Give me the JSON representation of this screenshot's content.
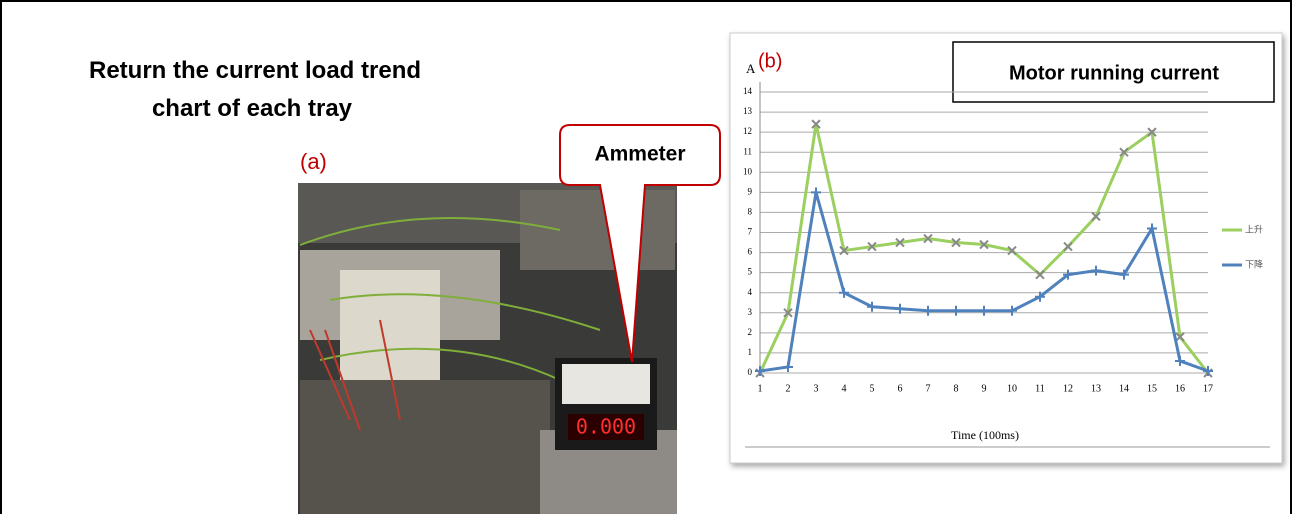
{
  "heading": "Return the current load trend chart of each tray",
  "panel_a": "(a)",
  "panel_b": "(b)",
  "callout": "Ammeter",
  "display": "0.000",
  "chart_data": {
    "type": "line",
    "title": "Motor running current",
    "y_label": "A",
    "x_label": "Time (100ms)",
    "categories": [
      "1",
      "2",
      "3",
      "4",
      "5",
      "6",
      "7",
      "8",
      "9",
      "10",
      "11",
      "12",
      "13",
      "14",
      "15",
      "16",
      "17"
    ],
    "series": [
      {
        "name": "上升",
        "color": "#9bcf5f",
        "values": [
          0,
          3,
          12.4,
          6.1,
          6.3,
          6.5,
          6.7,
          6.5,
          6.4,
          6.1,
          4.9,
          6.3,
          7.8,
          11,
          12,
          1.8,
          0
        ]
      },
      {
        "name": "下降",
        "color": "#4f81bd",
        "values": [
          0.1,
          0.3,
          9,
          4,
          3.3,
          3.2,
          3.1,
          3.1,
          3.1,
          3.1,
          3.8,
          4.9,
          5.1,
          4.9,
          7.2,
          0.6,
          0.1
        ]
      }
    ],
    "ylim": [
      0,
      14
    ],
    "yticks": [
      0,
      1,
      2,
      3,
      4,
      5,
      6,
      7,
      8,
      9,
      10,
      11,
      12,
      13,
      14
    ],
    "grid": true,
    "legend": "right"
  }
}
